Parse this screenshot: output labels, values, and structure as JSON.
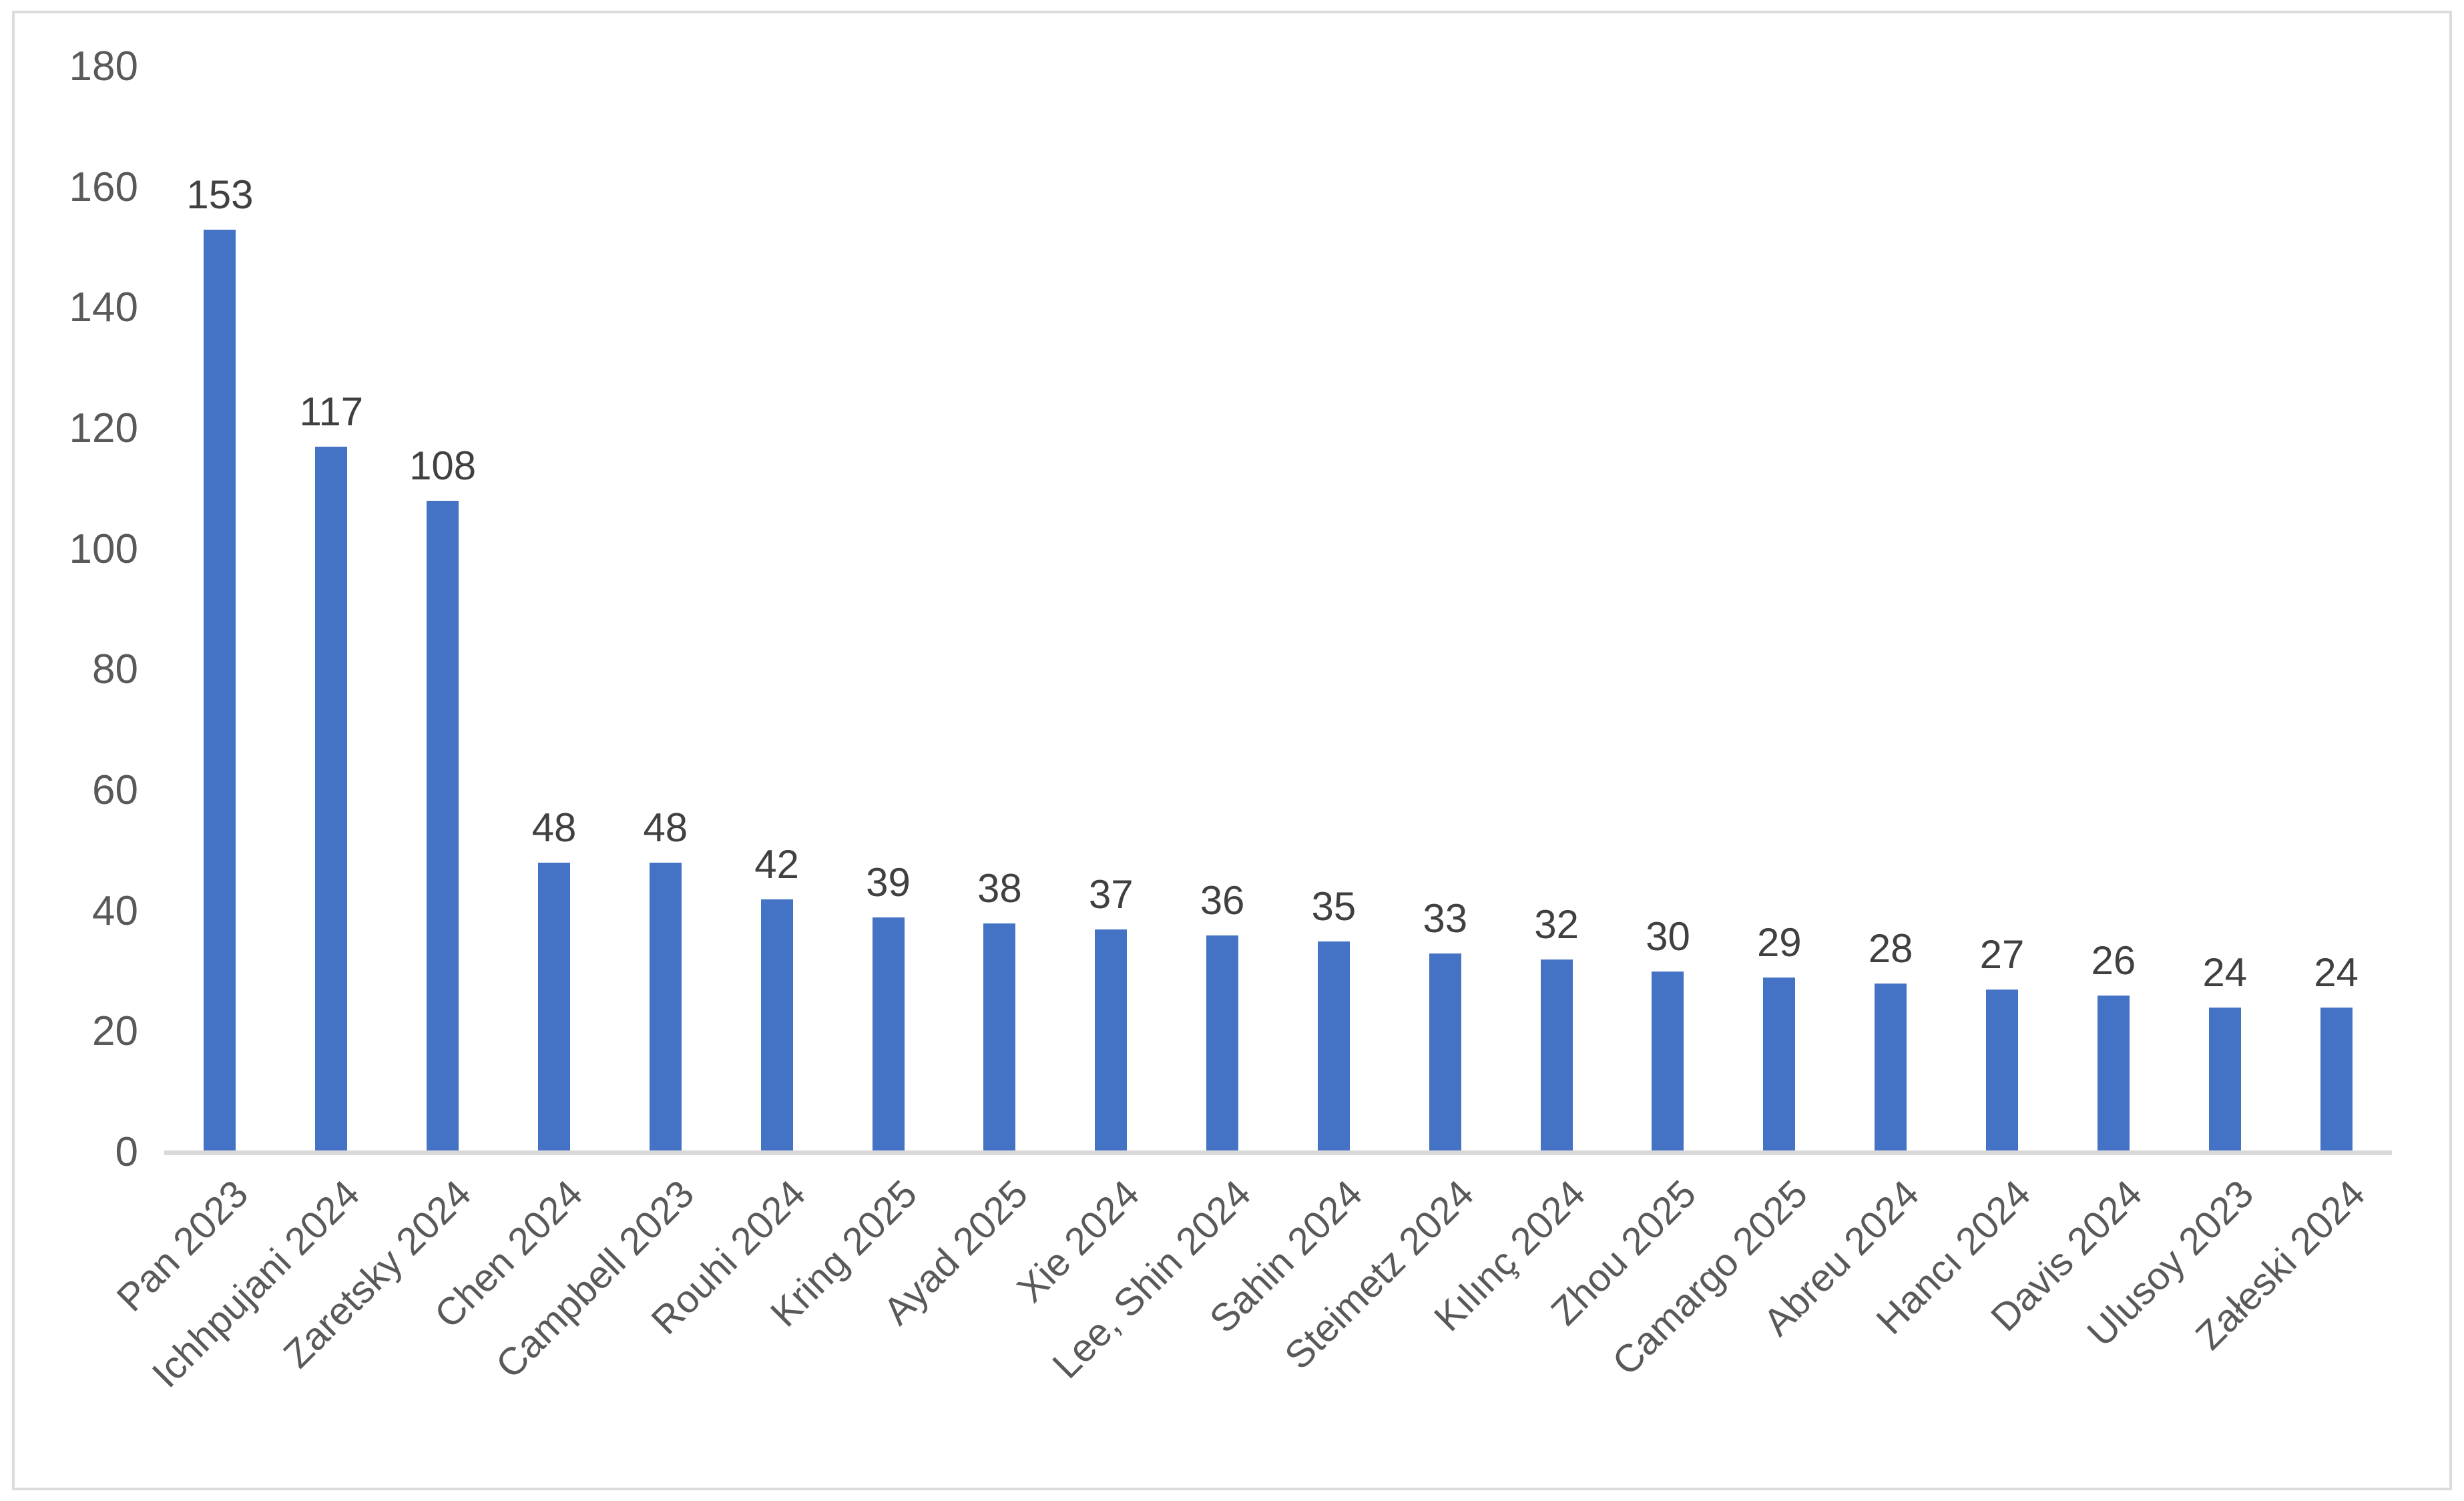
{
  "chart_data": {
    "type": "bar",
    "title": "",
    "xlabel": "",
    "ylabel": "",
    "categories": [
      "Pan 2023",
      "Ichhpujani 2024",
      "Zaretsky 2024",
      "Chen 2024",
      "Campbell 2023",
      "Rouhi 2024",
      "Kring 2025",
      "Ayad 2025",
      "Xie 2024",
      "Lee, Shin 2024",
      "Sahin 2024",
      "Steimetz 2024",
      "Kılınç 2024",
      "Zhou 2025",
      "Camargo 2025",
      "Abreu 2024",
      "Hancı 2024",
      "Davis 2024",
      "Ulusoy 2023",
      "Załeski 2024"
    ],
    "values": [
      153,
      117,
      108,
      48,
      48,
      42,
      39,
      38,
      37,
      36,
      35,
      33,
      32,
      30,
      29,
      28,
      27,
      26,
      24,
      24
    ],
    "data_labels": [
      153,
      117,
      108,
      48,
      48,
      42,
      39,
      38,
      37,
      36,
      35,
      33,
      32,
      30,
      29,
      28,
      27,
      26,
      24,
      24
    ],
    "ylim": [
      0,
      180
    ],
    "yticks": [
      0,
      20,
      40,
      60,
      80,
      100,
      120,
      140,
      160,
      180
    ],
    "grid": false,
    "legend": false,
    "x_label_rotation_deg": 45
  },
  "colors": {
    "bar_fill": "#4472C4",
    "value_label": "#404040",
    "tick_label": "#595959",
    "category_label": "#595959",
    "axis_line": "#D9D9D9",
    "frame_border": "#DCDCDC",
    "background": "#FFFFFF"
  }
}
